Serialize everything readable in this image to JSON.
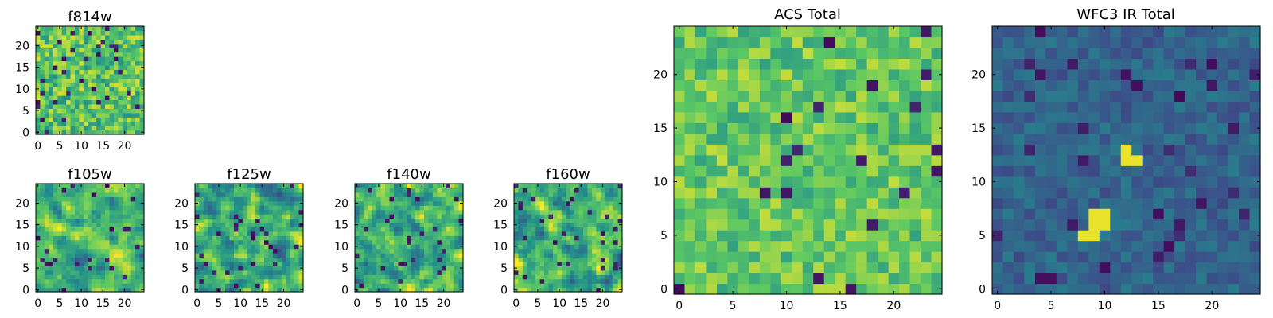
{
  "figure": {
    "background": "#ffffff"
  },
  "colormap": {
    "name": "viridis",
    "stops": [
      "#440154",
      "#3b528b",
      "#21908c",
      "#5dc963",
      "#fde725"
    ]
  },
  "chart_data": [
    {
      "id": "f814w",
      "type": "heatmap",
      "title": "f814w",
      "grid_size": 25,
      "xlim": [
        -0.5,
        24.5
      ],
      "ylim": [
        -0.5,
        24.5
      ],
      "xticks": [
        0,
        5,
        10,
        15,
        20
      ],
      "yticks": [
        0,
        5,
        10,
        15,
        20
      ],
      "value_range": [
        0,
        1
      ],
      "level": 0.72,
      "spread": 0.22,
      "dark_fraction": 0.06,
      "blob": null,
      "smooth": false,
      "seed": 11
    },
    {
      "id": "f105w",
      "type": "heatmap",
      "title": "f105w",
      "grid_size": 25,
      "xlim": [
        -0.5,
        24.5
      ],
      "ylim": [
        -0.5,
        24.5
      ],
      "xticks": [
        0,
        5,
        10,
        15,
        20
      ],
      "yticks": [
        0,
        5,
        10,
        15,
        20
      ],
      "value_range": [
        0,
        1
      ],
      "level": 0.68,
      "spread": 0.24,
      "dark_fraction": 0.04,
      "blob": null,
      "smooth": true,
      "seed": 21
    },
    {
      "id": "f125w",
      "type": "heatmap",
      "title": "f125w",
      "grid_size": 25,
      "xlim": [
        -0.5,
        24.5
      ],
      "ylim": [
        -0.5,
        24.5
      ],
      "xticks": [
        0,
        5,
        10,
        15,
        20
      ],
      "yticks": [
        0,
        5,
        10,
        15,
        20
      ],
      "value_range": [
        0,
        1
      ],
      "level": 0.62,
      "spread": 0.28,
      "dark_fraction": 0.05,
      "blob": null,
      "smooth": true,
      "seed": 31
    },
    {
      "id": "f140w",
      "type": "heatmap",
      "title": "f140w",
      "grid_size": 25,
      "xlim": [
        -0.5,
        24.5
      ],
      "ylim": [
        -0.5,
        24.5
      ],
      "xticks": [
        0,
        5,
        10,
        15,
        20
      ],
      "yticks": [
        0,
        5,
        10,
        15,
        20
      ],
      "value_range": [
        0,
        1
      ],
      "level": 0.64,
      "spread": 0.28,
      "dark_fraction": 0.05,
      "blob": null,
      "smooth": true,
      "seed": 41
    },
    {
      "id": "f160w",
      "type": "heatmap",
      "title": "f160w",
      "grid_size": 25,
      "xlim": [
        -0.5,
        24.5
      ],
      "ylim": [
        -0.5,
        24.5
      ],
      "xticks": [
        0,
        5,
        10,
        15,
        20
      ],
      "yticks": [
        0,
        5,
        10,
        15,
        20
      ],
      "value_range": [
        0,
        1
      ],
      "level": 0.66,
      "spread": 0.27,
      "dark_fraction": 0.05,
      "blob": null,
      "smooth": true,
      "seed": 51
    },
    {
      "id": "acs_total",
      "type": "heatmap",
      "title": "ACS Total",
      "grid_size": 25,
      "xlim": [
        -0.5,
        24.5
      ],
      "ylim": [
        -0.5,
        24.5
      ],
      "xticks": [
        0,
        5,
        10,
        15,
        20
      ],
      "yticks": [
        0,
        5,
        10,
        15,
        20
      ],
      "value_range": [
        0,
        1
      ],
      "level": 0.74,
      "spread": 0.17,
      "dark_fraction": 0.025,
      "blob": null,
      "smooth": false,
      "seed": 61
    },
    {
      "id": "wfc3_ir_total",
      "type": "heatmap",
      "title": "WFC3 IR Total",
      "grid_size": 25,
      "xlim": [
        -0.5,
        24.5
      ],
      "ylim": [
        -0.5,
        24.5
      ],
      "xticks": [
        0,
        5,
        10,
        15,
        20
      ],
      "yticks": [
        0,
        5,
        10,
        15,
        20
      ],
      "value_range": [
        0,
        1
      ],
      "level": 0.32,
      "spread": 0.1,
      "dark_fraction": 0.05,
      "blob": {
        "cells": [
          [
            12,
            12
          ],
          [
            13,
            12
          ],
          [
            12,
            13
          ],
          [
            9,
            6
          ],
          [
            10,
            6
          ],
          [
            9,
            7
          ],
          [
            10,
            7
          ],
          [
            8,
            5
          ],
          [
            9,
            5
          ]
        ],
        "value": 0.97
      },
      "smooth": false,
      "seed": 71
    }
  ]
}
